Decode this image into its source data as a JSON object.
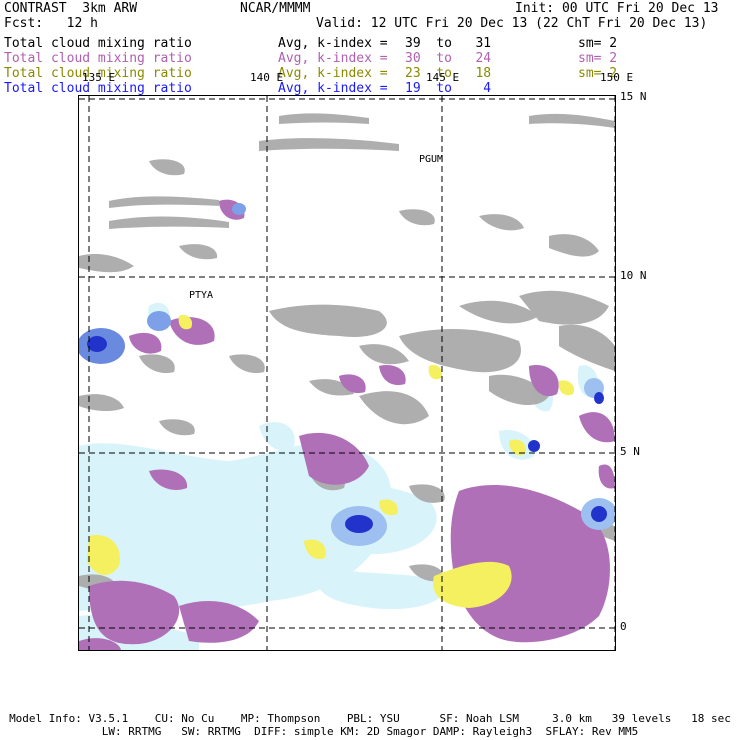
{
  "header": {
    "title": "CONTRAST  3km ARW",
    "org": "NCAR/MMMM",
    "init": "Init: 00 UTC Fri 20 Dec 13",
    "fcst": "Fcst:   12 h",
    "valid": "Valid: 12 UTC Fri 20 Dec 13 (22 ChT Fri 20 Dec 13)"
  },
  "fields": [
    {
      "name": "Total cloud mixing ratio",
      "avg": "Avg, k-index =",
      "range": "39  to   31",
      "sm": "sm= 2",
      "color": "#000000"
    },
    {
      "name": "Total cloud mixing ratio",
      "avg": "Avg, k-index =",
      "range": "30  to   24",
      "sm": "sm= 2",
      "color": "#b060b0"
    },
    {
      "name": "Total cloud mixing ratio",
      "avg": "Avg, k-index =",
      "range": "23  to   18",
      "sm": "sm= 2",
      "color": "#8a8a00"
    },
    {
      "name": "Total cloud mixing ratio",
      "avg": "Avg, k-index =",
      "range": "19  to    4",
      "sm": "",
      "color": "#1a1aff"
    }
  ],
  "map": {
    "lon_labels": [
      "135 E",
      "140 E",
      "145 E",
      "150 E"
    ],
    "lat_labels": [
      "15 N",
      "10 N",
      "5 N",
      "0"
    ],
    "stations": [
      "PGUM",
      "PTYA"
    ],
    "colors": {
      "gray": "#aaaaaa",
      "purple": "#b070b8",
      "lightblue": "#d8f4fa",
      "blue": "#2233cc",
      "yellow": "#f5f060"
    }
  },
  "footer": {
    "line1": "Model Info: V3.5.1    CU: No Cu    MP: Thompson    PBL: YSU      SF: Noah LSM     3.0 km   39 levels   18 sec",
    "line2": "LW: RRTMG   SW: RRTMG  DIFF: simple KM: 2D Smagor DAMP: Rayleigh3  SFLAY: Rev MM5"
  }
}
